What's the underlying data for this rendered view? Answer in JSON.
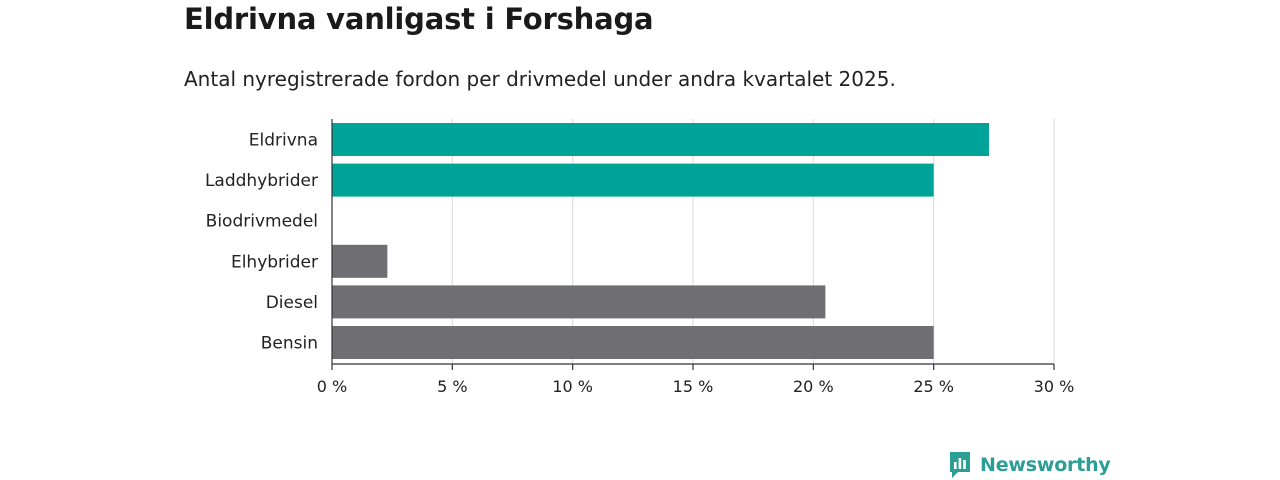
{
  "title": "Eldrivna vanligast i Forshaga",
  "subtitle": "Antal nyregistrerade fordon per drivmedel under andra kvartalet 2025.",
  "brand": "Newsworthy",
  "colors": {
    "highlight": "#00a398",
    "default": "#6e6e73",
    "grid": "#d9d9d9",
    "axis": "#333333"
  },
  "chart_data": {
    "type": "bar",
    "orientation": "horizontal",
    "categories": [
      "Eldrivna",
      "Laddhybrider",
      "Biodrivmedel",
      "Elhybrider",
      "Diesel",
      "Bensin"
    ],
    "values": [
      27.3,
      25.0,
      0,
      2.3,
      20.5,
      25.0
    ],
    "highlighted": [
      true,
      true,
      false,
      false,
      false,
      false
    ],
    "xlim": [
      0,
      30
    ],
    "xticks": [
      0,
      5,
      10,
      15,
      20,
      25,
      30
    ],
    "xtick_labels": [
      "0 %",
      "5 %",
      "10 %",
      "15 %",
      "20 %",
      "25 %",
      "30 %"
    ],
    "title": "Eldrivna vanligast i Forshaga",
    "subtitle": "Antal nyregistrerade fordon per drivmedel under andra kvartalet 2025.",
    "xlabel": "",
    "ylabel": "",
    "grid": true,
    "legend": "none"
  }
}
